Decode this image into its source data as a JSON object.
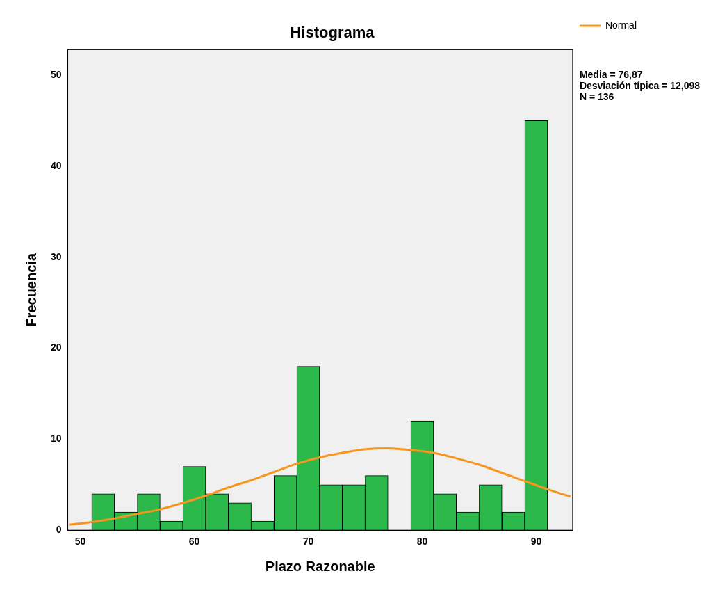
{
  "chart_data": {
    "type": "histogram",
    "title": "Histograma",
    "xlabel": "Plazo Razonable",
    "ylabel": "Frecuencia",
    "bins": [
      51,
      53,
      55,
      57,
      59,
      61,
      63,
      65,
      67,
      69,
      71,
      73,
      75,
      77,
      79,
      81,
      83,
      85,
      87,
      89,
      91
    ],
    "values": [
      4,
      2,
      4,
      1,
      7,
      4,
      3,
      1,
      6,
      18,
      5,
      5,
      6,
      0,
      12,
      4,
      2,
      5,
      2,
      45
    ],
    "color": "#2db84b",
    "series": [
      {
        "name": "Normal",
        "type": "line",
        "color": "#f7961e",
        "x": [
          49,
          51,
          53,
          55,
          57,
          59,
          61,
          63,
          65,
          67,
          69,
          71,
          73,
          75,
          77,
          79,
          81,
          83,
          85,
          87,
          89,
          91,
          93
        ],
        "values": [
          0.6,
          0.9,
          1.3,
          1.8,
          2.3,
          3.0,
          3.8,
          4.7,
          5.5,
          6.4,
          7.3,
          8.0,
          8.5,
          8.9,
          9.0,
          8.8,
          8.5,
          7.9,
          7.2,
          6.3,
          5.4,
          4.5,
          3.7
        ]
      }
    ],
    "xlim": [
      48.9,
      93.2
    ],
    "xticks": [
      50,
      60,
      70,
      80,
      90
    ],
    "ylim": [
      0,
      52.8
    ],
    "yticks": [
      0,
      10,
      20,
      30,
      40,
      50
    ],
    "annotations": [
      "Media = 76,87",
      "Desviación típica = 12,098",
      "N = 136"
    ],
    "legend": "top right",
    "grid": false,
    "marker": "none"
  }
}
